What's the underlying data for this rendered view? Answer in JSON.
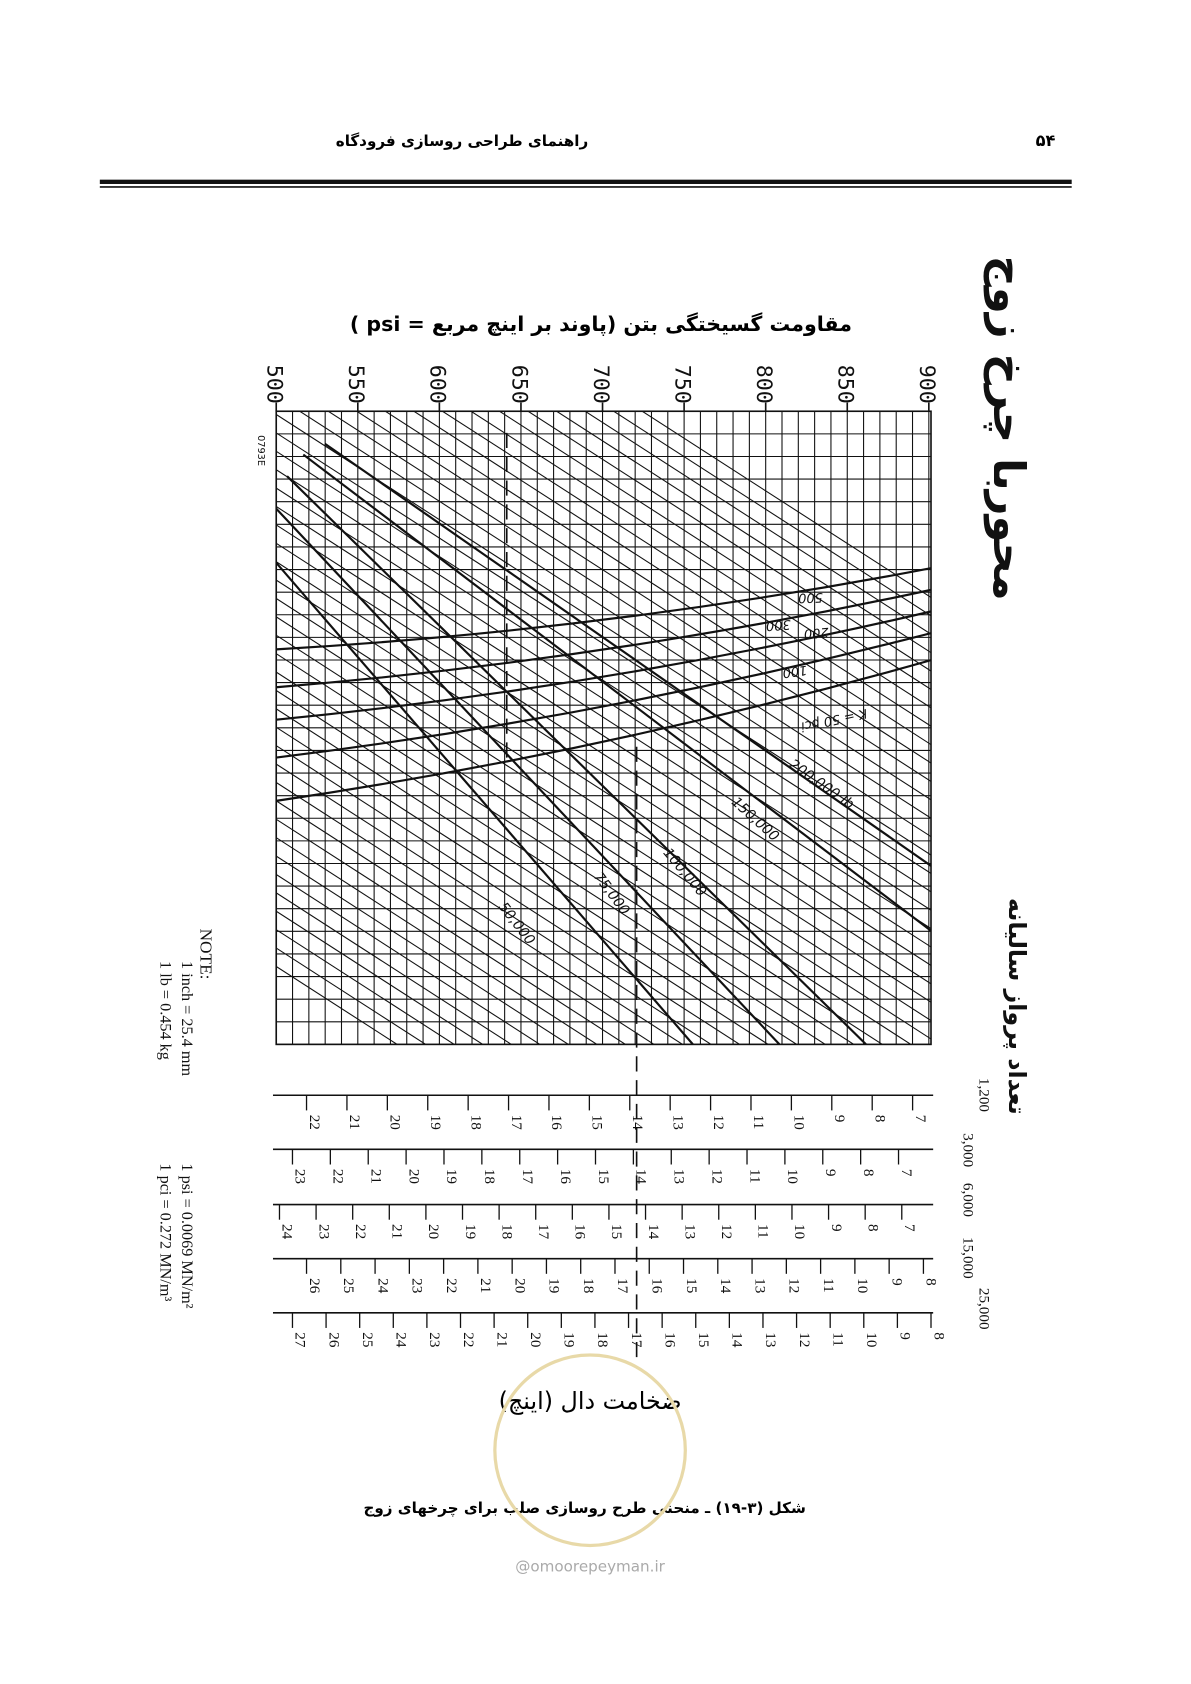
{
  "header": {
    "title": "راهنمای طراحی روسازی فرودگاه",
    "page_number": "۵۴"
  },
  "figure": {
    "axis_title": "مقاومت گسیختگی بتن (پاوند بر اینچ مربع = psi )",
    "flexural_ticks": [
      500,
      550,
      600,
      650,
      700,
      750,
      800,
      850,
      900
    ],
    "side_title": "محوربا چرخ زوج",
    "code": "0793E",
    "k_labels": [
      "K = 50 pci",
      "100",
      "200",
      "300",
      "500"
    ],
    "load_labels": [
      "200,000 lb",
      "150,000",
      "100,000",
      "75,000",
      "50,000"
    ],
    "departures_title": "تعداد پرواز سالیانه",
    "departures": [
      "1,200",
      "3,000",
      "6,000",
      "15,000",
      "25,000"
    ],
    "thickness_scales": [
      [
        7,
        8,
        9,
        10,
        11,
        12,
        13,
        14,
        15,
        16,
        17,
        18,
        19,
        20,
        21,
        22
      ],
      [
        7,
        8,
        9,
        10,
        11,
        12,
        13,
        14,
        15,
        16,
        17,
        18,
        19,
        20,
        21,
        22,
        23
      ],
      [
        7,
        8,
        9,
        10,
        11,
        12,
        13,
        14,
        15,
        16,
        17,
        18,
        19,
        20,
        21,
        22,
        23,
        24
      ],
      [
        8,
        9,
        10,
        11,
        12,
        13,
        14,
        15,
        16,
        17,
        18,
        19,
        20,
        21,
        22,
        23,
        24,
        25,
        26
      ],
      [
        8,
        9,
        10,
        11,
        12,
        13,
        14,
        15,
        16,
        17,
        18,
        19,
        20,
        21,
        22,
        23,
        24,
        25,
        26,
        27
      ]
    ],
    "thickness_title": "ضخامت دال (اینچ)",
    "note": {
      "title": "NOTE:",
      "lines": [
        "1 inch = 25.4 mm",
        "1 lb = 0.454 kg",
        "1 psi = 0.0069 MN/m²",
        "1 pci = 0.272 MN/m³"
      ]
    }
  },
  "caption": "شکل (۳-۱۹) ـ منحنی طرح روسازی صلب برای چرخهای زوج",
  "watermark": "@omoorepeyman.ir"
}
